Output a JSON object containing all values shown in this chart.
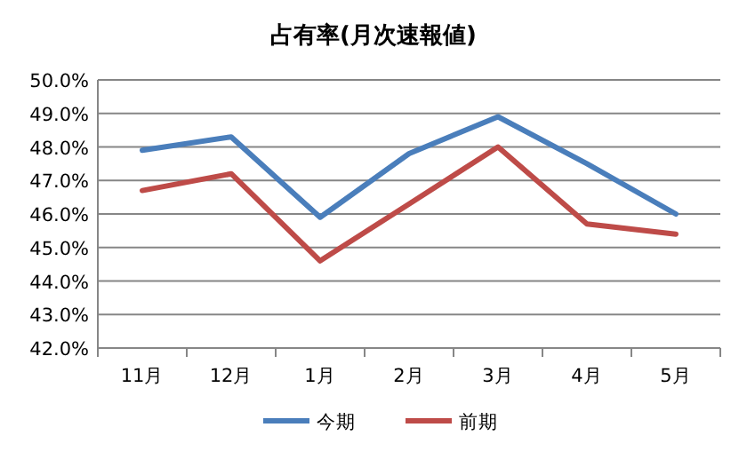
{
  "chart_data": {
    "type": "line",
    "title": "占有率(月次速報値)",
    "categories": [
      "11月",
      "12月",
      "1月",
      "2月",
      "3月",
      "4月",
      "5月"
    ],
    "series": [
      {
        "name": "今期",
        "color": "#4a7ebb",
        "values": [
          47.9,
          48.3,
          45.9,
          47.8,
          48.9,
          47.5,
          46.0
        ]
      },
      {
        "name": "前期",
        "color": "#be4b48",
        "values": [
          46.7,
          47.2,
          44.6,
          46.3,
          48.0,
          45.7,
          45.4
        ]
      }
    ],
    "ylim": [
      42,
      50
    ],
    "yticks": [
      {
        "value": 42,
        "label": "42.0%"
      },
      {
        "value": 43,
        "label": "43.0%"
      },
      {
        "value": 44,
        "label": "44.0%"
      },
      {
        "value": 45,
        "label": "45.0%"
      },
      {
        "value": 46,
        "label": "46.0%"
      },
      {
        "value": 47,
        "label": "47.0%"
      },
      {
        "value": 48,
        "label": "48.0%"
      },
      {
        "value": 49,
        "label": "49.0%"
      },
      {
        "value": 50,
        "label": "50.0%"
      }
    ],
    "grid": "y",
    "legend": "bottom",
    "marker": "none",
    "line_style": "solid"
  }
}
